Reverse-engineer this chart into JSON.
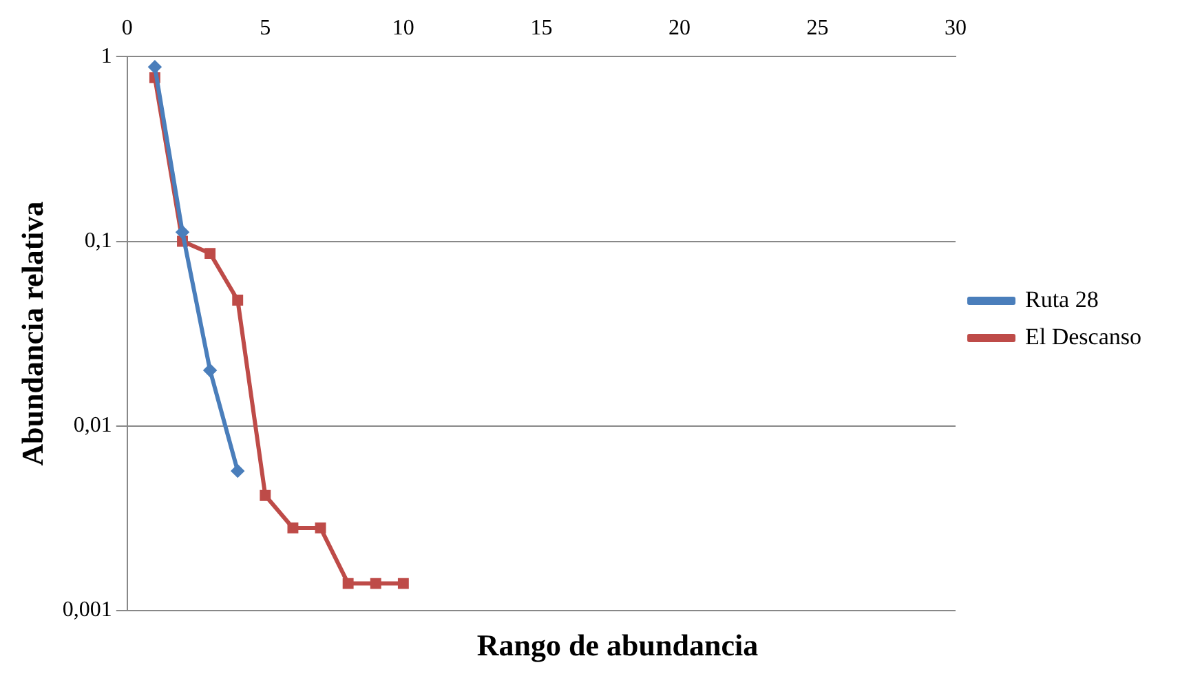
{
  "chart_data": {
    "type": "line",
    "xlabel": "Rango de  abundancia",
    "ylabel": "Abundancia relativa",
    "log": "y",
    "grid": "y",
    "legend": "right",
    "xlim": [
      0,
      30
    ],
    "xticks": [
      0,
      5,
      10,
      15,
      20,
      25,
      30
    ],
    "ylim": [
      0.001,
      1
    ],
    "yticks": [
      {
        "value": 0.001,
        "label": "0,001"
      },
      {
        "value": 0.01,
        "label": "0,01"
      },
      {
        "value": 0.1,
        "label": "0,1"
      },
      {
        "value": 1,
        "label": "1"
      }
    ],
    "series": [
      {
        "name": "Ruta 28",
        "color": "#4a7ebb",
        "marker": "diamond",
        "x": [
          1,
          2,
          3,
          4
        ],
        "values": [
          0.88,
          0.112,
          0.02,
          0.0057
        ]
      },
      {
        "name": "El Descanso",
        "color": "#be4b48",
        "marker": "square",
        "x": [
          1,
          2,
          3,
          4,
          5,
          6,
          7,
          8,
          9,
          10
        ],
        "values": [
          0.77,
          0.1,
          0.086,
          0.048,
          0.0042,
          0.0028,
          0.0028,
          0.0014,
          0.0014,
          0.0014
        ]
      }
    ]
  }
}
